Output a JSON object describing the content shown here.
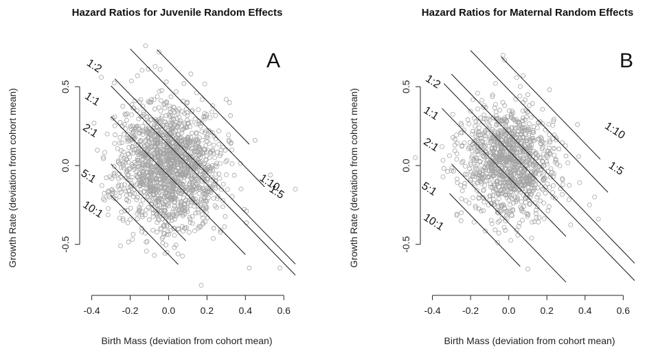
{
  "figure": {
    "ylabel": "Growth Rate (deviation from cohort mean)"
  },
  "chart_data": [
    {
      "type": "scatter",
      "title": "Hazard Ratios for Juvenile Random Effects",
      "panel": "A",
      "xlabel": "Birth Mass (deviation from cohort mean)",
      "ylabel": "Growth Rate (deviation from cohort mean)",
      "xlim": [
        -0.42,
        0.66
      ],
      "ylim": [
        -0.78,
        0.78
      ],
      "xticks": [
        -0.4,
        -0.2,
        0.0,
        0.2,
        0.4,
        0.6
      ],
      "xtick_labels": [
        "-0.4",
        "-0.2",
        "0.0",
        "0.2",
        "0.4",
        "0.6"
      ],
      "yticks": [
        -0.5,
        0.0,
        0.5
      ],
      "ytick_labels": [
        "-0.5",
        "0.0",
        "0.5"
      ],
      "grid": false,
      "point_color": "#a3a3a3",
      "scatter": {
        "n": 1600,
        "center": [
          0.0,
          0.0
        ],
        "sd": [
          0.135,
          0.2
        ],
        "correlation": -0.08,
        "outliers": [
          [
            -0.12,
            0.76
          ],
          [
            -0.05,
            0.72
          ],
          [
            -0.35,
            0.56
          ],
          [
            0.42,
            -0.65
          ],
          [
            0.58,
            -0.65
          ],
          [
            0.17,
            -0.76
          ],
          [
            0.66,
            -0.15
          ],
          [
            0.53,
            -0.06
          ],
          [
            0.45,
            0.16
          ],
          [
            0.33,
            0.1
          ],
          [
            -0.29,
            0.3
          ],
          [
            0.03,
            -0.52
          ],
          [
            0.3,
            0.42
          ],
          [
            -0.25,
            -0.51
          ],
          [
            0.23,
            0.38
          ],
          [
            0.08,
            0.52
          ]
        ]
      },
      "slope": -1.25,
      "contours": [
        {
          "label": "1:10",
          "x": [
            -0.06,
            0.42
          ],
          "intercept": 0.66
        },
        {
          "label": "1:5",
          "x": [
            -0.2,
            0.5
          ],
          "intercept": 0.49
        },
        {
          "label": "1:2",
          "x": [
            -0.28,
            0.66
          ],
          "intercept": 0.2
        },
        {
          "label": "1:1",
          "x": [
            -0.3,
            0.66
          ],
          "intercept": 0.13
        },
        {
          "label": "2:1",
          "x": [
            -0.3,
            0.4
          ],
          "intercept": -0.065
        },
        {
          "label": "5:1",
          "x": [
            -0.3,
            0.09
          ],
          "intercept": -0.365
        },
        {
          "label": "10:1",
          "x": [
            -0.3,
            0.05
          ],
          "intercept": -0.565
        }
      ],
      "ratio_labels": [
        {
          "text": "1:10",
          "x": 0.47,
          "y": -0.09,
          "angle": 33
        },
        {
          "text": "1:5",
          "x": 0.52,
          "y": -0.16,
          "angle": 33
        },
        {
          "text": "1:2",
          "x": -0.43,
          "y": 0.64,
          "angle": 33
        },
        {
          "text": "1:1",
          "x": -0.44,
          "y": 0.43,
          "angle": 33
        },
        {
          "text": "2:1",
          "x": -0.45,
          "y": 0.23,
          "angle": 33
        },
        {
          "text": "5:1",
          "x": -0.46,
          "y": -0.06,
          "angle": 33
        },
        {
          "text": "10:1",
          "x": -0.45,
          "y": -0.26,
          "angle": 33
        }
      ]
    },
    {
      "type": "scatter",
      "title": "Hazard Ratios for Maternal Random Effects",
      "panel": "B",
      "xlabel": "Birth Mass (deviation from cohort mean)",
      "ylabel": "Growth Rate (deviation from cohort mean)",
      "xlim": [
        -0.42,
        0.66
      ],
      "ylim": [
        -0.78,
        0.78
      ],
      "xticks": [
        -0.4,
        -0.2,
        0.0,
        0.2,
        0.4,
        0.6
      ],
      "xtick_labels": [
        "-0.4",
        "-0.2",
        "0.0",
        "0.2",
        "0.4",
        "0.6"
      ],
      "yticks": [
        -0.5,
        0.0,
        0.5
      ],
      "ytick_labels": [
        "-0.5",
        "0.0",
        "0.5"
      ],
      "grid": false,
      "point_color": "#a3a3a3",
      "scatter": {
        "n": 1150,
        "center": [
          0.0,
          0.02
        ],
        "sd": [
          0.12,
          0.18
        ],
        "correlation": -0.05,
        "outliers": [
          [
            -0.03,
            0.7
          ],
          [
            0.36,
            0.26
          ],
          [
            -0.49,
            0.05
          ],
          [
            0.47,
            -0.34
          ],
          [
            0.12,
            -0.46
          ],
          [
            0.1,
            0.45
          ],
          [
            -0.25,
            -0.35
          ],
          [
            0.3,
            0.06
          ],
          [
            -0.35,
            0.12
          ],
          [
            0.45,
            -0.2
          ]
        ]
      },
      "slope": -1.25,
      "contours": [
        {
          "label": "1:10",
          "x": [
            -0.04,
            0.48
          ],
          "intercept": 0.64
        },
        {
          "label": "1:5",
          "x": [
            -0.2,
            0.52
          ],
          "intercept": 0.48
        },
        {
          "label": "1:2",
          "x": [
            -0.3,
            0.66
          ],
          "intercept": 0.205
        },
        {
          "label": "1:1",
          "x": [
            -0.34,
            0.66
          ],
          "intercept": 0.095
        },
        {
          "label": "2:1",
          "x": [
            -0.35,
            0.3
          ],
          "intercept": -0.075
        },
        {
          "label": "5:1",
          "x": [
            -0.3,
            0.3
          ],
          "intercept": -0.365
        },
        {
          "label": "10:1",
          "x": [
            -0.31,
            0.06
          ],
          "intercept": -0.565
        }
      ],
      "ratio_labels": [
        {
          "text": "1:10",
          "x": 0.5,
          "y": 0.24,
          "angle": 33
        },
        {
          "text": "1:5",
          "x": 0.52,
          "y": -0.01,
          "angle": 33
        },
        {
          "text": "1:2",
          "x": -0.44,
          "y": 0.54,
          "angle": 33
        },
        {
          "text": "1:1",
          "x": -0.45,
          "y": 0.34,
          "angle": 33
        },
        {
          "text": "2:1",
          "x": -0.45,
          "y": 0.14,
          "angle": 33
        },
        {
          "text": "5:1",
          "x": -0.46,
          "y": -0.14,
          "angle": 33
        },
        {
          "text": "10:1",
          "x": -0.45,
          "y": -0.34,
          "angle": 33
        }
      ]
    }
  ]
}
